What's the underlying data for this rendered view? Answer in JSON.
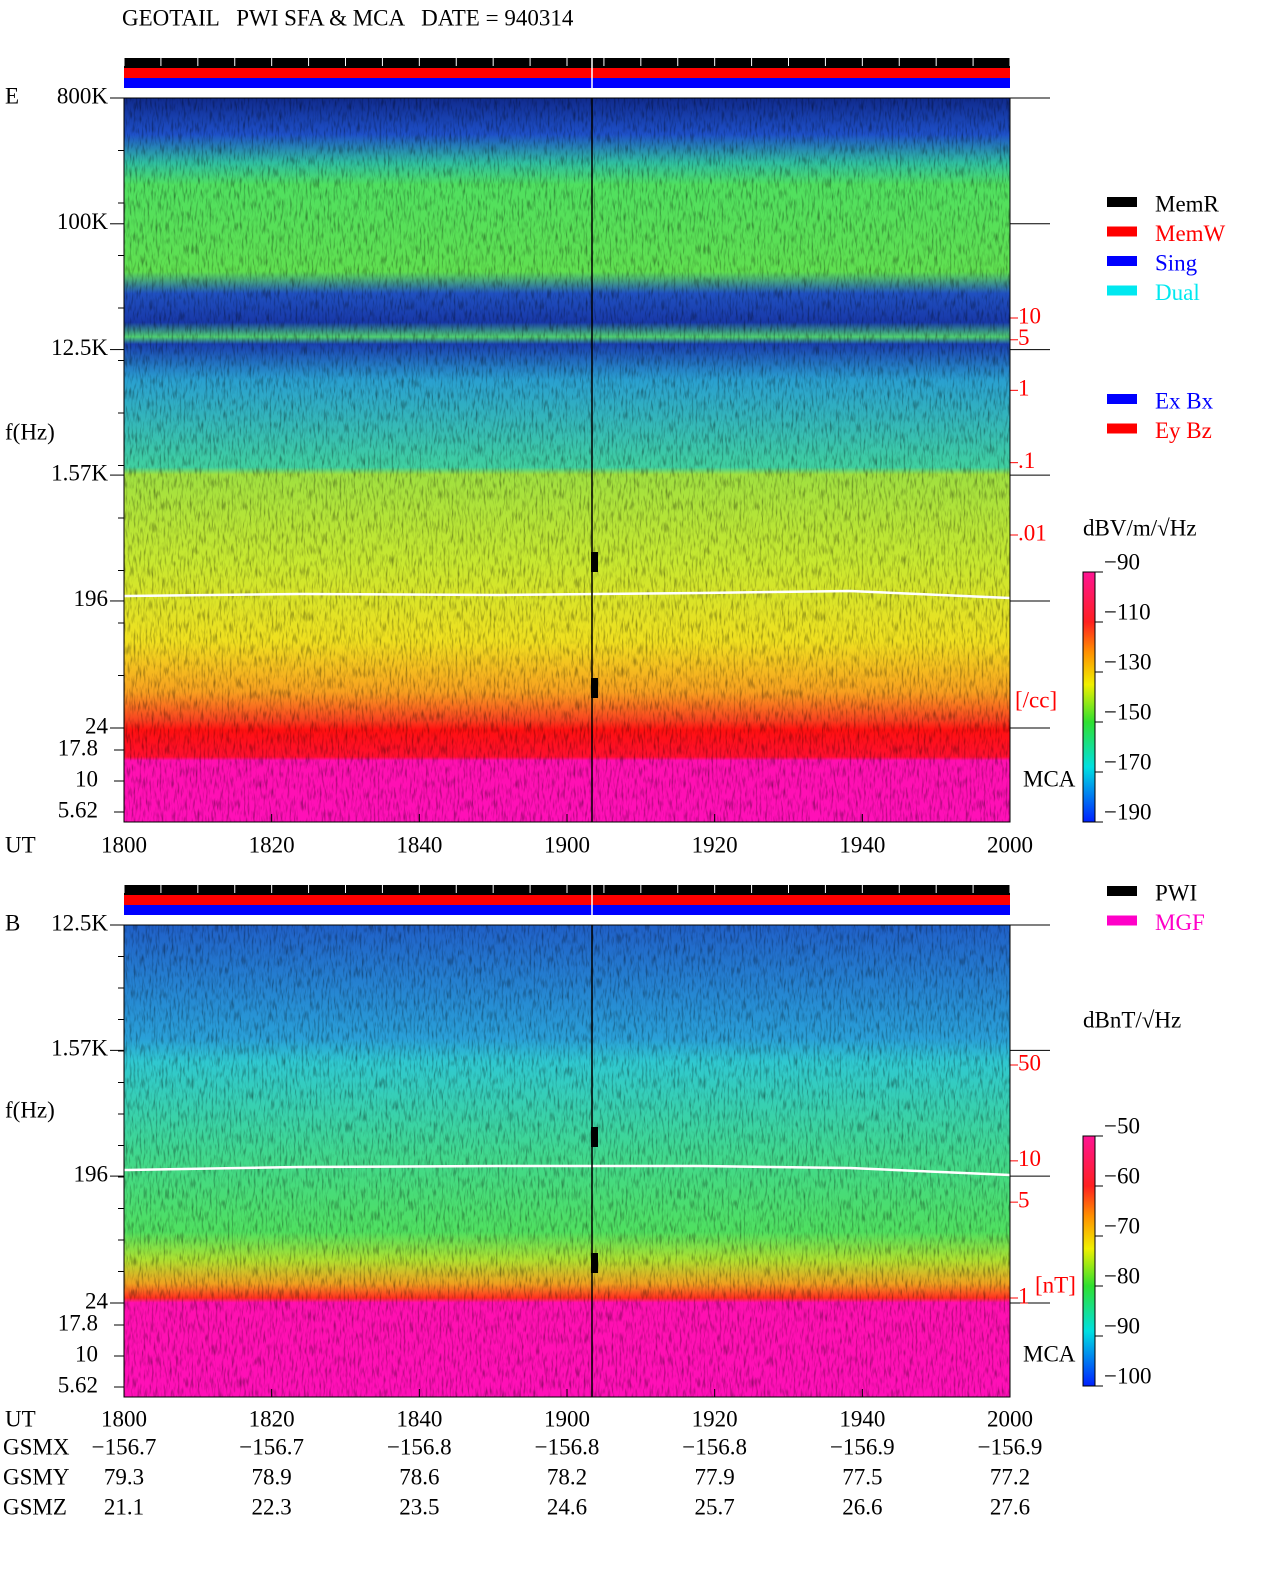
{
  "title": "GEOTAIL   PWI SFA & MCA   DATE = 940314",
  "chart_data": [
    {
      "type": "spectrogram",
      "panel": "E",
      "ylabel": "f(Hz)",
      "xlabel": "UT",
      "xlim": [
        1800,
        2000
      ],
      "xticks": [
        1800,
        1820,
        1840,
        1900,
        1920,
        1940,
        2000
      ],
      "ylim": [
        24,
        800000
      ],
      "y_log": true,
      "yticks": [
        {
          "value": 800000,
          "label": "800K"
        },
        {
          "value": 100000,
          "label": "100K"
        },
        {
          "value": 12500,
          "label": "12.5K"
        },
        {
          "value": 1570,
          "label": "1.57K"
        },
        196,
        24
      ],
      "mca_ylim": [
        5.62,
        17.8
      ],
      "mca_yticks": [
        17.8,
        10,
        5.62
      ],
      "mca_label": "MCA",
      "y2lim": [
        0.01,
        10
      ],
      "y2_log": true,
      "y2color": "#ff0000",
      "y2ticks": [
        10,
        5,
        1,
        {
          "value": 0.1,
          "label": ".1"
        },
        {
          "value": 0.01,
          "label": ".01"
        }
      ],
      "y2label": "[/cc]",
      "colorbar": {
        "label": "dBV/m/√Hz",
        "lim": [
          -190,
          -90
        ],
        "ticks": [
          -90,
          -110,
          -130,
          -150,
          -170,
          -190
        ]
      },
      "legends": [
        [
          {
            "name": "MemR",
            "color": "#000000"
          },
          {
            "name": "MemW",
            "color": "#ff0000"
          },
          {
            "name": "Sing",
            "color": "#0000ff"
          },
          {
            "name": "Dual",
            "color": "#00e8f0"
          }
        ],
        [
          {
            "name": "Ex Bx",
            "color": "#0000ff"
          },
          {
            "name": "Ey Bz",
            "color": "#ff0000"
          }
        ]
      ]
    },
    {
      "type": "spectrogram",
      "panel": "B",
      "ylabel": "f(Hz)",
      "xlabel": "UT",
      "xlim": [
        1800,
        2000
      ],
      "xticks": [
        1800,
        1820,
        1840,
        1900,
        1920,
        1940,
        2000
      ],
      "ylim": [
        24,
        12500
      ],
      "y_log": true,
      "yticks": [
        {
          "value": 12500,
          "label": "12.5K"
        },
        {
          "value": 1570,
          "label": "1.57K"
        },
        196,
        24
      ],
      "mca_ylim": [
        5.62,
        17.8
      ],
      "mca_yticks": [
        17.8,
        10,
        5.62
      ],
      "mca_label": "MCA",
      "y2lim": [
        1,
        50
      ],
      "y2_log": true,
      "y2color": "#ff0000",
      "y2ticks": [
        50,
        10,
        5,
        1
      ],
      "y2label": "[nT]",
      "colorbar": {
        "label": "dBnT/√Hz",
        "lim": [
          -100,
          -50
        ],
        "ticks": [
          -50,
          -60,
          -70,
          -80,
          -90,
          -100
        ]
      },
      "legends": [
        [
          {
            "name": "PWI",
            "color": "#000000"
          },
          {
            "name": "MGF",
            "color": "#ff00c8"
          }
        ]
      ]
    }
  ],
  "ephemeris": [
    {
      "label": "GSMX",
      "values": [
        -156.7,
        -156.7,
        -156.8,
        -156.8,
        -156.8,
        -156.9,
        -156.9
      ]
    },
    {
      "label": "GSMY",
      "values": [
        79.3,
        78.9,
        78.6,
        78.2,
        77.9,
        77.5,
        77.2
      ]
    },
    {
      "label": "GSMZ",
      "values": [
        21.1,
        22.3,
        23.5,
        24.6,
        25.7,
        26.6,
        27.6
      ]
    }
  ]
}
